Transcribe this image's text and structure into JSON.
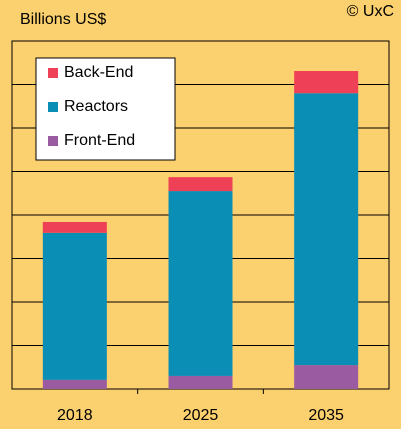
{
  "chart_data": {
    "type": "stacked_bar",
    "subtitle": "Billions US$",
    "annotation": "© UxC",
    "categories": [
      "2018",
      "2025",
      "2035"
    ],
    "series": [
      {
        "name": "Front-End",
        "color": "#9b5ba0",
        "values": [
          2.1,
          3.0,
          5.5
        ]
      },
      {
        "name": "Reactors",
        "color": "#0b8eb6",
        "values": [
          33.8,
          42.5,
          62.5
        ]
      },
      {
        "name": "Back-End",
        "color": "#ee4057",
        "values": [
          2.5,
          3.2,
          5.1
        ]
      }
    ],
    "ylim": [
      0,
      80
    ],
    "yticks": [
      0,
      10,
      20,
      30,
      40,
      50,
      60,
      70,
      80
    ],
    "grid": true
  }
}
